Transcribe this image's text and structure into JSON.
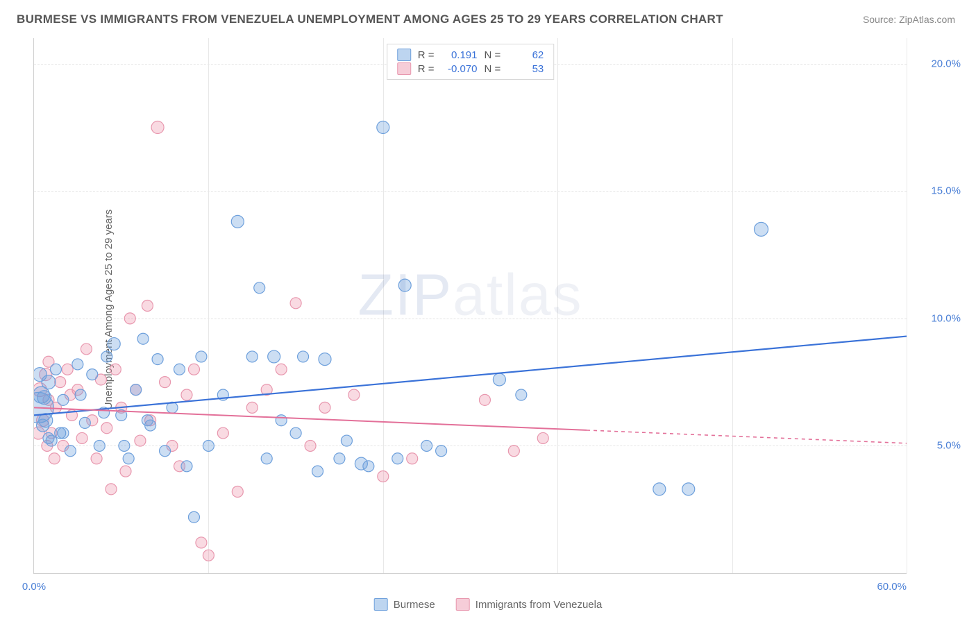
{
  "title": "BURMESE VS IMMIGRANTS FROM VENEZUELA UNEMPLOYMENT AMONG AGES 25 TO 29 YEARS CORRELATION CHART",
  "source": "Source: ZipAtlas.com",
  "ylabel": "Unemployment Among Ages 25 to 29 years",
  "watermark_prefix": "ZIP",
  "watermark_suffix": "atlas",
  "chart": {
    "type": "scatter",
    "xlim": [
      0,
      60
    ],
    "ylim": [
      0,
      21
    ],
    "ytick_values": [
      5,
      10,
      15,
      20
    ],
    "ytick_labels": [
      "5.0%",
      "10.0%",
      "15.0%",
      "20.0%"
    ],
    "xtick_values": [
      0,
      60
    ],
    "xtick_labels": [
      "0.0%",
      "60.0%"
    ],
    "vgrid_values": [
      12,
      24,
      36,
      48,
      60
    ],
    "grid_color": "#e4e4e4",
    "background_color": "#ffffff",
    "border_color": "#d0d0d0",
    "series": [
      {
        "name": "Burmese",
        "color_fill": "rgba(110,160,220,0.35)",
        "color_stroke": "#6ea0dc",
        "swatch_fill": "#bdd5f0",
        "swatch_stroke": "#6ea0dc",
        "R": "0.191",
        "N": "62",
        "trend": {
          "x1": 0,
          "y1": 6.2,
          "x2": 60,
          "y2": 9.3,
          "solid_end_x": 60,
          "color": "#3a72d8",
          "width": 2.2
        },
        "marker_r": 8,
        "points": [
          [
            0.3,
            6.5,
            22
          ],
          [
            0.5,
            7.0,
            12
          ],
          [
            0.8,
            6.0,
            10
          ],
          [
            1.0,
            7.5,
            10
          ],
          [
            1.2,
            5.2,
            8
          ],
          [
            1.5,
            8.0,
            8
          ],
          [
            1.8,
            5.5,
            8
          ],
          [
            2.0,
            6.8,
            8
          ],
          [
            0.6,
            5.8,
            9
          ],
          [
            2.5,
            4.8,
            8
          ],
          [
            3.0,
            8.2,
            8
          ],
          [
            3.5,
            5.9,
            8
          ],
          [
            4.0,
            7.8,
            8
          ],
          [
            4.5,
            5.0,
            8
          ],
          [
            5.0,
            8.5,
            8
          ],
          [
            5.5,
            9.0,
            9
          ],
          [
            6.0,
            6.2,
            8
          ],
          [
            6.5,
            4.5,
            8
          ],
          [
            7.0,
            7.2,
            8
          ],
          [
            7.5,
            9.2,
            8
          ],
          [
            8.0,
            5.8,
            8
          ],
          [
            8.5,
            8.4,
            8
          ],
          [
            9.0,
            4.8,
            8
          ],
          [
            9.5,
            6.5,
            8
          ],
          [
            10.0,
            8.0,
            8
          ],
          [
            10.5,
            4.2,
            8
          ],
          [
            11.0,
            2.2,
            8
          ],
          [
            11.5,
            8.5,
            8
          ],
          [
            12.0,
            5.0,
            8
          ],
          [
            13.0,
            7.0,
            8
          ],
          [
            14.0,
            13.8,
            9
          ],
          [
            15.0,
            8.5,
            8
          ],
          [
            15.5,
            11.2,
            8
          ],
          [
            16.0,
            4.5,
            8
          ],
          [
            16.5,
            8.5,
            9
          ],
          [
            17.0,
            6.0,
            8
          ],
          [
            18.0,
            5.5,
            8
          ],
          [
            18.5,
            8.5,
            8
          ],
          [
            19.5,
            4.0,
            8
          ],
          [
            20.0,
            8.4,
            9
          ],
          [
            21.0,
            4.5,
            8
          ],
          [
            21.5,
            5.2,
            8
          ],
          [
            22.5,
            4.3,
            9
          ],
          [
            23.0,
            4.2,
            8
          ],
          [
            24.0,
            17.5,
            9
          ],
          [
            25.0,
            4.5,
            8
          ],
          [
            25.5,
            11.3,
            9
          ],
          [
            27.0,
            5.0,
            8
          ],
          [
            28.0,
            4.8,
            8
          ],
          [
            32.0,
            7.6,
            9
          ],
          [
            33.5,
            7.0,
            8
          ],
          [
            43.0,
            3.3,
            9
          ],
          [
            45.0,
            3.3,
            9
          ],
          [
            50.0,
            13.5,
            10
          ],
          [
            1.0,
            5.3,
            8
          ],
          [
            2.0,
            5.5,
            8
          ],
          [
            3.2,
            7.0,
            8
          ],
          [
            4.8,
            6.3,
            8
          ],
          [
            6.2,
            5.0,
            8
          ],
          [
            7.8,
            6.0,
            8
          ],
          [
            0.4,
            7.8,
            10
          ],
          [
            0.7,
            6.9,
            10
          ]
        ]
      },
      {
        "name": "Immigrants from Venezuela",
        "color_fill": "rgba(235,140,165,0.32)",
        "color_stroke": "#e897ae",
        "swatch_fill": "#f6cdd8",
        "swatch_stroke": "#e897ae",
        "R": "-0.070",
        "N": "53",
        "trend": {
          "x1": 0,
          "y1": 6.5,
          "x2": 60,
          "y2": 5.1,
          "solid_end_x": 38,
          "color": "#e37099",
          "width": 2.0
        },
        "marker_r": 8,
        "points": [
          [
            0.4,
            7.2,
            10
          ],
          [
            0.6,
            6.0,
            9
          ],
          [
            0.8,
            7.8,
            9
          ],
          [
            1.0,
            8.3,
            8
          ],
          [
            1.2,
            5.5,
            8
          ],
          [
            1.5,
            6.5,
            8
          ],
          [
            1.8,
            7.5,
            8
          ],
          [
            2.0,
            5.0,
            8
          ],
          [
            2.3,
            8.0,
            8
          ],
          [
            2.6,
            6.2,
            8
          ],
          [
            3.0,
            7.2,
            8
          ],
          [
            3.3,
            5.3,
            8
          ],
          [
            3.6,
            8.8,
            8
          ],
          [
            4.0,
            6.0,
            8
          ],
          [
            4.3,
            4.5,
            8
          ],
          [
            4.6,
            7.6,
            8
          ],
          [
            5.0,
            5.7,
            8
          ],
          [
            5.3,
            3.3,
            8
          ],
          [
            5.6,
            8.0,
            8
          ],
          [
            6.0,
            6.5,
            8
          ],
          [
            6.3,
            4.0,
            8
          ],
          [
            6.6,
            10.0,
            8
          ],
          [
            7.0,
            7.2,
            8
          ],
          [
            7.3,
            5.2,
            8
          ],
          [
            7.8,
            10.5,
            8
          ],
          [
            8.0,
            6.0,
            8
          ],
          [
            8.5,
            17.5,
            9
          ],
          [
            9.0,
            7.5,
            8
          ],
          [
            9.5,
            5.0,
            8
          ],
          [
            10.0,
            4.2,
            8
          ],
          [
            10.5,
            7.0,
            8
          ],
          [
            11.0,
            8.0,
            8
          ],
          [
            11.5,
            1.2,
            8
          ],
          [
            12.0,
            0.7,
            8
          ],
          [
            13.0,
            5.5,
            8
          ],
          [
            14.0,
            3.2,
            8
          ],
          [
            15.0,
            6.5,
            8
          ],
          [
            16.0,
            7.2,
            8
          ],
          [
            17.0,
            8.0,
            8
          ],
          [
            18.0,
            10.6,
            8
          ],
          [
            19.0,
            5.0,
            8
          ],
          [
            20.0,
            6.5,
            8
          ],
          [
            22.0,
            7.0,
            8
          ],
          [
            24.0,
            3.8,
            8
          ],
          [
            26.0,
            4.5,
            8
          ],
          [
            31.0,
            6.8,
            8
          ],
          [
            33.0,
            4.8,
            8
          ],
          [
            35.0,
            5.3,
            8
          ],
          [
            1.0,
            6.8,
            8
          ],
          [
            2.5,
            7.0,
            8
          ],
          [
            0.3,
            5.5,
            9
          ],
          [
            0.9,
            5.0,
            8
          ],
          [
            1.4,
            4.5,
            8
          ]
        ]
      }
    ]
  },
  "legend_bottom": [
    {
      "label": "Burmese",
      "fill": "#bdd5f0",
      "stroke": "#6ea0dc"
    },
    {
      "label": "Immigrants from Venezuela",
      "fill": "#f6cdd8",
      "stroke": "#e897ae"
    }
  ],
  "legend_top_text": {
    "R_label": "R =",
    "N_label": "N ="
  }
}
